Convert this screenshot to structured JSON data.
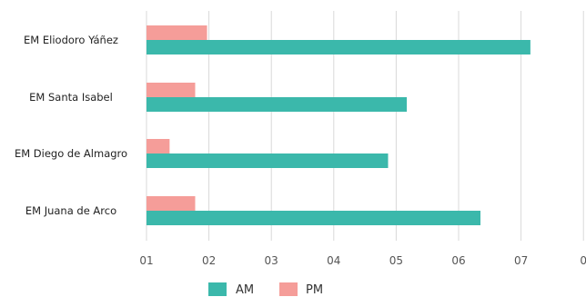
{
  "chart_data": {
    "type": "bar",
    "orientation": "horizontal",
    "categories": [
      "EM Eliodoro Yáñez",
      "EM Santa Isabel",
      "EM Diego de Almagro",
      "EM Juana de Arco"
    ],
    "series": [
      {
        "name": "AM",
        "color": "#3bb8ab",
        "values": [
          7.15,
          5.17,
          4.87,
          6.35
        ]
      },
      {
        "name": "PM",
        "color": "#f59d99",
        "values": [
          1.97,
          1.78,
          1.37,
          1.78
        ]
      }
    ],
    "x_ticks": [
      "01",
      "02",
      "03",
      "04",
      "05",
      "06",
      "07",
      "0"
    ],
    "xlim": [
      1,
      8
    ],
    "grid": true,
    "legend_position": "bottom"
  }
}
